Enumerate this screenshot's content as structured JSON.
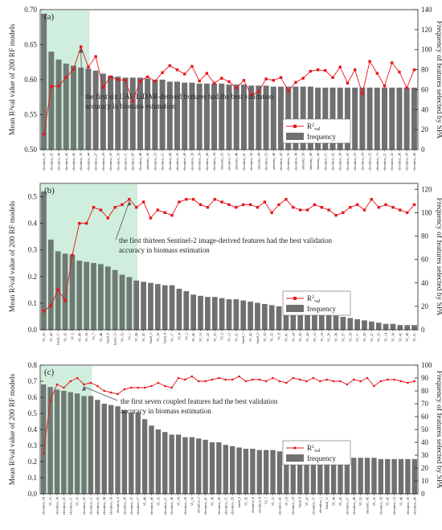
{
  "chart_data": [
    {
      "type": "bar+line",
      "panel_label": "(a)",
      "ylabel_left": "Mean R²val value of 200 RF models",
      "ylabel_right": "Frequency of features selected by SPA",
      "ylim_left": [
        0.5,
        0.7
      ],
      "yticks_left": [
        0.5,
        0.55,
        0.6,
        0.65,
        0.7
      ],
      "ylim_right": [
        0,
        140
      ],
      "yticks_right": [
        0,
        20,
        40,
        60,
        80,
        100,
        120,
        140
      ],
      "annotation": "the first six UAV LiDAR-derived features had the best validation accuracy in biomass estimation",
      "highlight_count": 6,
      "legend": {
        "line": "R²val",
        "bar": "frequency"
      },
      "line_color": "#e8141c",
      "bar_color": "#707070",
      "highlight_color": "#cfeedd",
      "categories": [
        "elevation_20",
        "elevation_55",
        "elevation_56",
        "elevation_45",
        "elevation_45",
        "elevation_30",
        "elevation_44",
        "elevation_27",
        "elevation_29",
        "elevation_43",
        "elevation_50",
        "elevation_31",
        "elevation_47",
        "elevation_48",
        "intensity_45",
        "elevation_33",
        "elevation_21",
        "elevation_26",
        "elevation_32",
        "elevation_49",
        "elevation_39",
        "elevation_28",
        "elevation_40",
        "elevation_34",
        "intensity_53",
        "elevation_37",
        "intensity_46",
        "elevation_41",
        "elevation_38",
        "intensity_44",
        "elevation_53",
        "intensity_49",
        "elevation_42",
        "elevation_35",
        "elevation_36",
        "intensity_50",
        "intensity_48",
        "intensity_42",
        "elevation_51",
        "elevation_52",
        "elevation_38",
        "elevation_22",
        "elevation_23",
        "elevation_24",
        "elevation_25",
        "elevation_15",
        "elevation_21",
        "elevation_22",
        "elevation_26",
        "elevation_30",
        "elevation_40"
      ],
      "frequency": [
        136,
        98,
        90,
        86,
        84,
        82,
        81,
        79,
        76,
        74,
        73,
        72,
        72,
        72,
        71,
        70,
        70,
        68,
        68,
        67,
        67,
        66,
        66,
        66,
        66,
        65,
        65,
        65,
        64,
        64,
        64,
        63,
        63,
        63,
        63,
        63,
        63,
        62,
        62,
        62,
        62,
        62,
        62,
        62,
        62,
        62,
        62,
        62,
        62,
        62,
        62
      ],
      "r2": [
        0.522,
        0.59,
        0.591,
        0.603,
        0.615,
        0.647,
        0.618,
        0.633,
        0.589,
        0.604,
        0.6,
        0.599,
        0.569,
        0.598,
        0.604,
        0.598,
        0.61,
        0.62,
        0.614,
        0.608,
        0.619,
        0.598,
        0.609,
        0.595,
        0.602,
        0.597,
        0.588,
        0.599,
        0.578,
        0.583,
        0.601,
        0.599,
        0.603,
        0.584,
        0.596,
        0.602,
        0.612,
        0.614,
        0.613,
        0.603,
        0.618,
        0.595,
        0.614,
        0.58,
        0.626,
        0.609,
        0.591,
        0.624,
        0.611,
        0.588,
        0.614
      ]
    },
    {
      "type": "bar+line",
      "panel_label": "(b)",
      "ylabel_left": "Mean R²val value of 200 RF models",
      "ylabel_right": "Frequency of features selected by SPA",
      "ylim_left": [
        0.0,
        0.55
      ],
      "yticks_left": [
        0.0,
        0.1,
        0.2,
        0.3,
        0.4,
        0.5
      ],
      "ylim_right": [
        0,
        125
      ],
      "yticks_right": [
        0,
        20,
        40,
        60,
        80,
        100,
        120
      ],
      "annotation": "the first thirteen Sentinel-2 image-derived features had the best validation accuracy in biomass estimation",
      "highlight_count": 13,
      "legend": {
        "line": "R²val",
        "bar": "frequency"
      },
      "line_color": "#e8141c",
      "bar_color": "#707070",
      "highlight_color": "#cfeedd",
      "categories": [
        "VI_53",
        "VI_40",
        "band_11",
        "VI_35",
        "VI_5",
        "VI_48",
        "VI_34",
        "VI_7",
        "VI_46",
        "band_8",
        "band_12",
        "VI_52",
        "VI_1",
        "VI_26",
        "VI_47",
        "band_3",
        "VI_16",
        "band_4",
        "VI_17",
        "VI_6",
        "VI_2",
        "VI_45",
        "VI_10",
        "VI_22",
        "VI_23",
        "VI_3",
        "VI_13",
        "VI_31",
        "band_7",
        "VI_42",
        "band_2",
        "VI_32",
        "VI_33",
        "VI_8",
        "VI_41",
        "VI_24",
        "VI_43",
        "VI_44",
        "VI_12",
        "VI_18",
        "VI_29",
        "VI_36",
        "VI_37",
        "VI_39",
        "VI_11",
        "VI_20",
        "VI_21",
        "VI_25",
        "VI_14",
        "VI_30",
        "VI_42",
        "VI_49",
        "VI_51"
      ],
      "frequency": [
        118,
        77,
        67,
        65,
        64,
        59,
        58,
        57,
        56,
        54,
        51,
        47,
        45,
        42,
        41,
        40,
        39,
        38,
        38,
        35,
        33,
        30,
        29,
        28,
        28,
        27,
        26,
        26,
        25,
        24,
        23,
        22,
        21,
        20,
        19,
        18,
        17,
        16,
        15,
        14,
        13,
        12,
        11,
        10,
        9,
        8,
        7,
        6,
        5,
        5,
        4,
        4,
        4
      ],
      "r2": [
        0.07,
        0.09,
        0.15,
        0.11,
        0.28,
        0.4,
        0.4,
        0.46,
        0.45,
        0.42,
        0.46,
        0.47,
        0.49,
        0.46,
        0.48,
        0.42,
        0.45,
        0.44,
        0.43,
        0.48,
        0.49,
        0.49,
        0.47,
        0.46,
        0.49,
        0.48,
        0.47,
        0.46,
        0.47,
        0.47,
        0.46,
        0.48,
        0.44,
        0.47,
        0.49,
        0.46,
        0.45,
        0.45,
        0.47,
        0.46,
        0.45,
        0.43,
        0.44,
        0.46,
        0.47,
        0.45,
        0.49,
        0.46,
        0.47,
        0.46,
        0.45,
        0.44,
        0.47
      ]
    },
    {
      "type": "bar+line",
      "panel_label": "(c)",
      "ylabel_left": "Mean R²val value of 200 RF models",
      "ylabel_right": "Frequency of features selected by SPA",
      "ylim_left": [
        0.0,
        0.8
      ],
      "yticks_left": [
        0.0,
        0.1,
        0.2,
        0.3,
        0.4,
        0.5,
        0.6,
        0.7,
        0.8
      ],
      "ylim_right": [
        0,
        100
      ],
      "yticks_right": [
        0,
        10,
        20,
        30,
        40,
        50,
        60,
        70,
        80,
        90,
        100
      ],
      "annotation": "the first seven coupled features had the best validation accuracy in biomass estimation",
      "highlight_count": 7,
      "legend": {
        "line": "R²val",
        "bar": "frequency"
      },
      "line_color": "#e8141c",
      "bar_color": "#707070",
      "highlight_color": "#cfeedd",
      "categories": [
        "elevation_24",
        "VI_53",
        "elevation_34",
        "elevation_25",
        "elevation_21",
        "VI_35",
        "elevation_55",
        "elevation_11",
        "elevation_23",
        "elevation_36",
        "elevation_16",
        "elevation_9",
        "elevation_28",
        "elevation_33",
        "elevation_17",
        "VI_48",
        "elevation_40",
        "VI_35",
        "elevation_21",
        "elevation_26",
        "VI_34",
        "elevation_39",
        "VI_16",
        "elevation_2",
        "elevation_41",
        "VI_36",
        "elevation_20",
        "elevation_31",
        "elevation_29",
        "band_2",
        "VI_30",
        "elevation_6",
        "elevation_8",
        "VI_7",
        "VI_33",
        "elevation_42",
        "VI_19",
        "elevation_18",
        "band_8",
        "VI_22",
        "elevation_37",
        "elevation_1",
        "band_11",
        "VI_44",
        "VI_45",
        "elevation_27",
        "elevation_48",
        "VI_25",
        "intensity_45",
        "VI_32",
        "elevation_38",
        "VI_42",
        "elevation_10",
        "VI_46",
        "elevation_30",
        "elevation_40"
      ],
      "frequency": [
        85,
        83,
        81,
        80,
        79,
        78,
        76,
        76,
        73,
        70,
        69,
        68,
        65,
        63,
        63,
        58,
        53,
        50,
        48,
        46,
        46,
        44,
        44,
        43,
        42,
        40,
        40,
        38,
        37,
        36,
        35,
        35,
        34,
        34,
        34,
        33,
        33,
        33,
        32,
        31,
        30,
        30,
        30,
        29,
        29,
        29,
        28,
        28,
        28,
        28,
        27,
        27,
        27,
        27,
        27,
        27
      ],
      "r2": [
        0.25,
        0.58,
        0.68,
        0.66,
        0.7,
        0.72,
        0.68,
        0.69,
        0.67,
        0.64,
        0.63,
        0.62,
        0.65,
        0.66,
        0.66,
        0.66,
        0.67,
        0.69,
        0.67,
        0.66,
        0.72,
        0.71,
        0.73,
        0.7,
        0.7,
        0.71,
        0.72,
        0.71,
        0.71,
        0.73,
        0.7,
        0.71,
        0.71,
        0.7,
        0.72,
        0.7,
        0.69,
        0.72,
        0.71,
        0.7,
        0.72,
        0.7,
        0.71,
        0.7,
        0.7,
        0.68,
        0.71,
        0.7,
        0.72,
        0.67,
        0.7,
        0.71,
        0.71,
        0.7,
        0.69,
        0.7
      ]
    }
  ]
}
